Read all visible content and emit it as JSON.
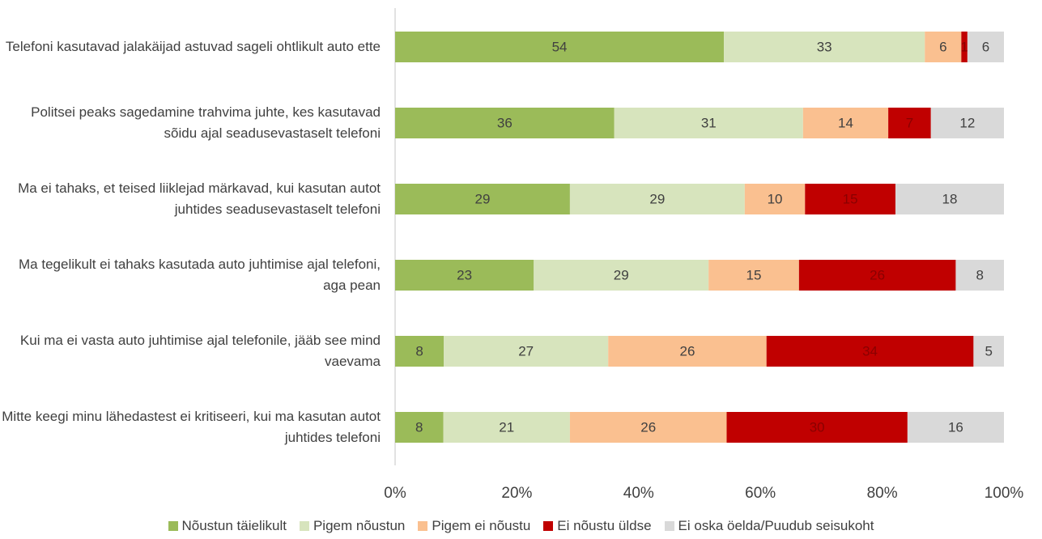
{
  "chart_data": {
    "type": "bar",
    "orientation": "horizontal",
    "stacked": true,
    "stack_mode": "percent",
    "categories": [
      "Telefoni kasutavad jalakäijad astuvad sageli ohtlikult auto ette",
      "Politsei peaks sagedamine trahvima juhte, kes kasutavad sõidu ajal seadusevastaselt telefoni",
      "Ma ei tahaks, et teised liiklejad märkavad, kui kasutan autot juhtides seadusevastaselt telefoni",
      "Ma tegelikult ei tahaks kasutada auto juhtimise ajal telefoni, aga pean",
      "Kui ma ei vasta auto juhtimise ajal telefonile, jääb see mind vaevama",
      "Mitte keegi minu lähedastest ei kritiseeri, kui ma kasutan autot juhtides telefoni"
    ],
    "series": [
      {
        "name": "Nõustun täielikult",
        "color": "#9bbb59",
        "label_color": "#404040",
        "values": [
          54,
          36,
          29,
          23,
          8,
          8
        ]
      },
      {
        "name": "Pigem nõustun",
        "color": "#d7e4bd",
        "label_color": "#404040",
        "values": [
          33,
          31,
          29,
          29,
          27,
          21
        ]
      },
      {
        "name": "Pigem ei nõustu",
        "color": "#fac090",
        "label_color": "#404040",
        "values": [
          6,
          14,
          10,
          15,
          26,
          26
        ]
      },
      {
        "name": "Ei nõustu üldse",
        "color": "#c00000",
        "label_color": "#8a0000",
        "values": [
          1,
          7,
          15,
          26,
          34,
          30
        ]
      },
      {
        "name": "Ei oska öelda/Puudub seisukoht",
        "color": "#d9d9d9",
        "label_color": "#404040",
        "values": [
          6,
          12,
          18,
          8,
          5,
          16
        ]
      }
    ],
    "xlim": [
      0,
      100
    ],
    "xticks": [
      {
        "value": 0,
        "label": "0%"
      },
      {
        "value": 20,
        "label": "20%"
      },
      {
        "value": 40,
        "label": "40%"
      },
      {
        "value": 60,
        "label": "60%"
      },
      {
        "value": 80,
        "label": "80%"
      },
      {
        "value": 100,
        "label": "100%"
      }
    ],
    "legend": "bottom"
  }
}
